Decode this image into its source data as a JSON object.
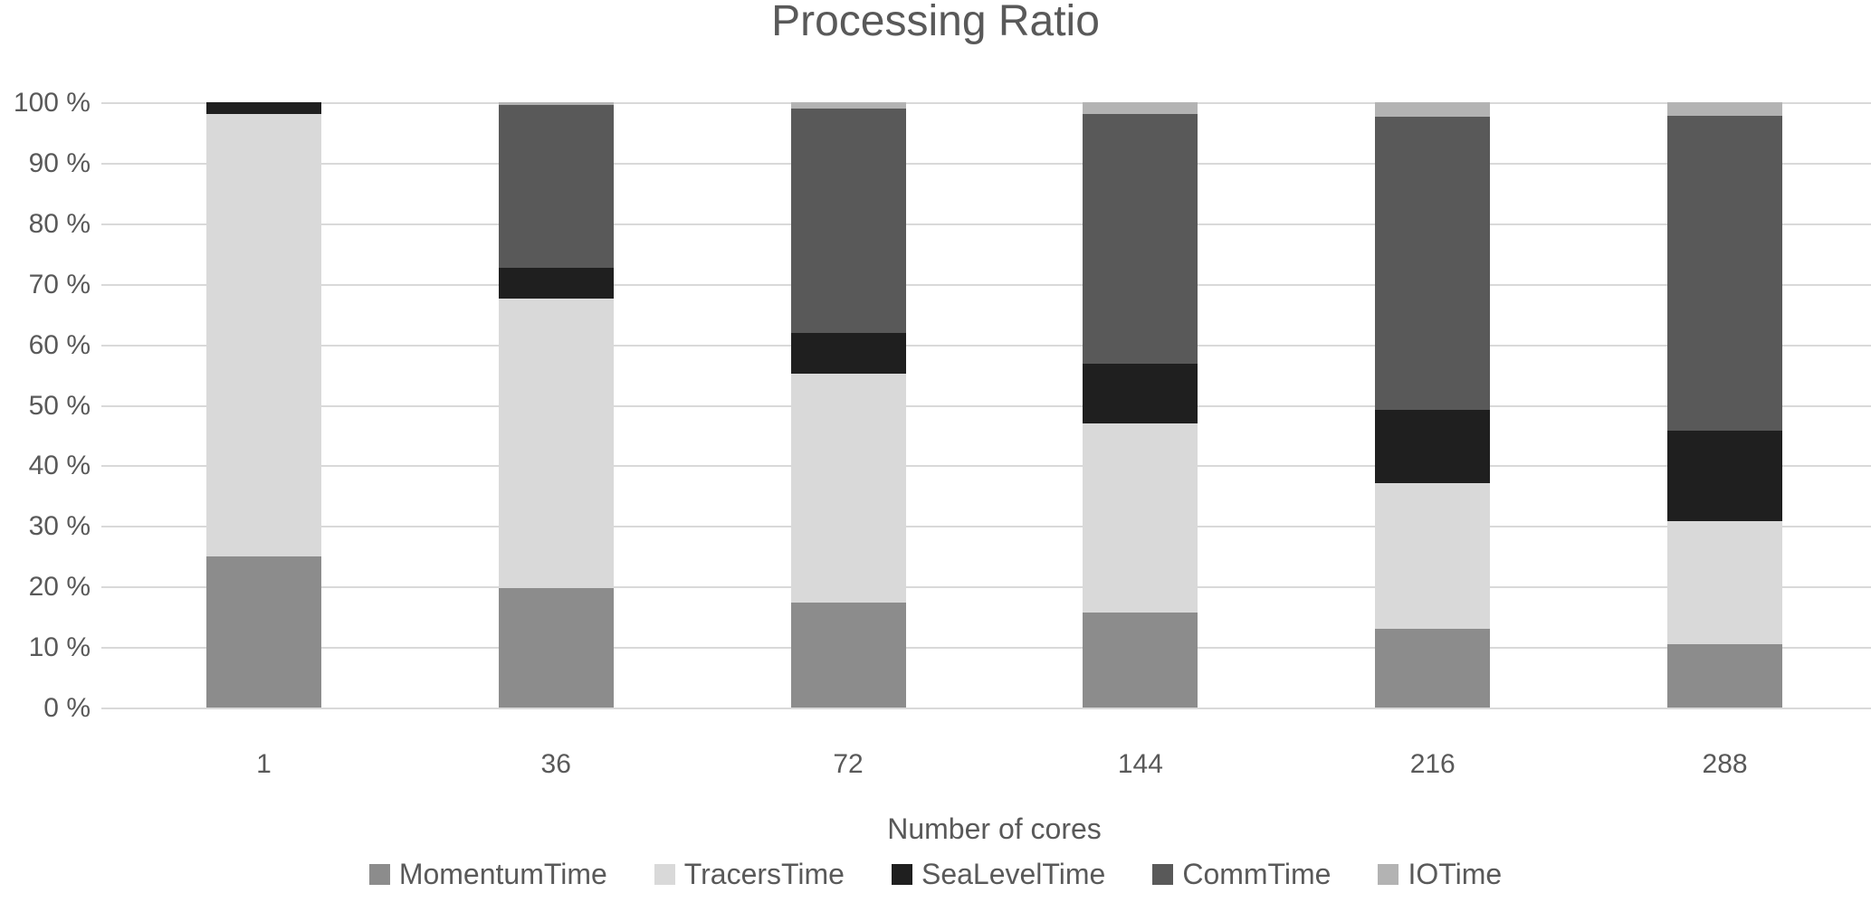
{
  "chart_data": {
    "type": "bar",
    "stacked": true,
    "percent_stacked": true,
    "title": "Processing Ratio",
    "xlabel": "Number of cores",
    "ylabel": "",
    "categories": [
      "1",
      "36",
      "72",
      "144",
      "216",
      "288"
    ],
    "y_ticks": [
      "100 %",
      "90 %",
      "80 %",
      "70 %",
      "60 %",
      "50 %",
      "40 %",
      "30 %",
      "20 %",
      "10 %",
      "0 %"
    ],
    "ylim": [
      0,
      100
    ],
    "grid": true,
    "legend_position": "bottom",
    "series": [
      {
        "name": "MomentumTime",
        "color": "#8c8c8c",
        "values": [
          25.0,
          19.7,
          17.3,
          15.7,
          13.0,
          10.5
        ]
      },
      {
        "name": "TracersTime",
        "color": "#d9d9d9",
        "values": [
          73.0,
          47.8,
          37.8,
          31.3,
          24.1,
          20.3
        ]
      },
      {
        "name": "SeaLevelTime",
        "color": "#1f1f1f",
        "values": [
          2.0,
          5.2,
          6.8,
          9.8,
          12.1,
          15.0
        ]
      },
      {
        "name": "CommTime",
        "color": "#595959",
        "values": [
          0.0,
          26.8,
          37.0,
          41.3,
          48.4,
          51.9
        ]
      },
      {
        "name": "IOTime",
        "color": "#b3b3b3",
        "values": [
          0.0,
          0.5,
          1.1,
          1.9,
          2.4,
          2.3
        ]
      }
    ],
    "styles": {
      "text_color": "#595959",
      "grid_color": "#d9d9d9",
      "background": "#ffffff"
    }
  }
}
